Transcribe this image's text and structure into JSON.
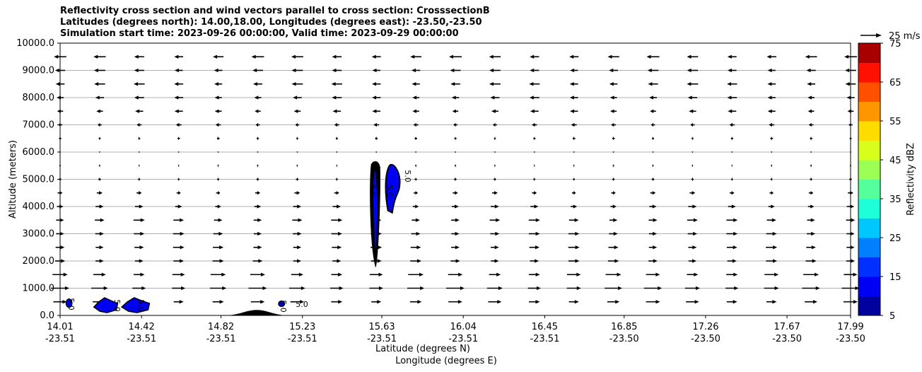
{
  "chart_data": {
    "type": "contour",
    "title_lines": [
      "Reflectivity cross section and wind vectors parallel to cross section: CrosssectionB",
      "Latitudes (degrees north): 14.00,18.00, Longitudes (degrees east): -23.50,-23.50",
      "Simulation start time: 2023-09-26 00:00:00, Valid time: 2023-09-29 00:00:00"
    ],
    "ylabel": "Altitude (meters)",
    "xlabel_lat": "Latitude (degrees N)",
    "xlabel_lon": "Longitude (degrees E)",
    "ylim": [
      0,
      10000
    ],
    "xlim": [
      14.01,
      17.99
    ],
    "y_ticks": [
      "0.0",
      "1000.0",
      "2000.0",
      "3000.0",
      "4000.0",
      "5000.0",
      "6000.0",
      "7000.0",
      "8000.0",
      "9000.0",
      "10000.0"
    ],
    "y_tick_values": [
      0,
      1000,
      2000,
      3000,
      4000,
      5000,
      6000,
      7000,
      8000,
      9000,
      10000
    ],
    "gridlines_y": [
      1000,
      2000,
      3000,
      4000,
      5000,
      6000,
      7000,
      8000,
      9000
    ],
    "x_ticks": [
      {
        "lat": "14.01",
        "lon": "-23.51",
        "value": 14.01
      },
      {
        "lat": "14.42",
        "lon": "-23.51",
        "value": 14.42
      },
      {
        "lat": "14.82",
        "lon": "-23.51",
        "value": 14.82
      },
      {
        "lat": "15.23",
        "lon": "-23.51",
        "value": 15.23
      },
      {
        "lat": "15.63",
        "lon": "-23.51",
        "value": 15.63
      },
      {
        "lat": "16.04",
        "lon": "-23.51",
        "value": 16.04
      },
      {
        "lat": "16.45",
        "lon": "-23.51",
        "value": 16.45
      },
      {
        "lat": "16.85",
        "lon": "-23.50",
        "value": 16.85
      },
      {
        "lat": "17.26",
        "lon": "-23.50",
        "value": 17.26
      },
      {
        "lat": "17.67",
        "lon": "-23.50",
        "value": 17.67
      },
      {
        "lat": "17.99",
        "lon": "-23.50",
        "value": 17.99
      }
    ],
    "colorbar": {
      "label": "Reflectivity dBZ",
      "levels": [
        5,
        10,
        15,
        20,
        25,
        30,
        35,
        40,
        45,
        50,
        55,
        60,
        65,
        70,
        75
      ],
      "tick_labels": [
        "5",
        "15",
        "25",
        "35",
        "45",
        "55",
        "65",
        "75"
      ],
      "colors": [
        "#00009e",
        "#0000f5",
        "#0030ff",
        "#0080ff",
        "#00c8ff",
        "#1cffd8",
        "#55ff9c",
        "#9cff55",
        "#d8ff1c",
        "#ffdc00",
        "#ff9600",
        "#ff5000",
        "#ff1000",
        "#a80000"
      ]
    },
    "quiver_key": "25 m/s",
    "contour_labels": [
      "5.0"
    ],
    "terrain": {
      "peak_lat": 15.0,
      "peak_alt": 200
    },
    "reflectivity_cells": [
      {
        "lat_range": [
          14.04,
          14.07
        ],
        "alt_range": [
          300,
          600
        ],
        "dbz": 10
      },
      {
        "lat_range": [
          14.18,
          14.3
        ],
        "alt_range": [
          100,
          650
        ],
        "dbz": 10
      },
      {
        "lat_range": [
          14.32,
          14.46
        ],
        "alt_range": [
          100,
          650
        ],
        "dbz": 10
      },
      {
        "lat_range": [
          15.11,
          15.14
        ],
        "alt_range": [
          330,
          530
        ],
        "dbz": 10
      },
      {
        "lat_range": [
          15.57,
          15.62
        ],
        "alt_range": [
          1800,
          5700
        ],
        "dbz": 10
      },
      {
        "lat_range": [
          15.65,
          15.71
        ],
        "alt_range": [
          3800,
          5600
        ],
        "dbz": 10
      }
    ],
    "wind_profile": [
      {
        "alt": 500,
        "u": 10
      },
      {
        "alt": 1000,
        "u": 13
      },
      {
        "alt": 1500,
        "u": 11
      },
      {
        "alt": 2000,
        "u": 8
      },
      {
        "alt": 2500,
        "u": 8
      },
      {
        "alt": 3000,
        "u": 8
      },
      {
        "alt": 3500,
        "u": 8
      },
      {
        "alt": 4000,
        "u": 6
      },
      {
        "alt": 4500,
        "u": 4
      },
      {
        "alt": 5000,
        "u": 2
      },
      {
        "alt": 5500,
        "u": 1
      },
      {
        "alt": 6000,
        "u": 0
      },
      {
        "alt": 6500,
        "u": -2
      },
      {
        "alt": 7000,
        "u": -4
      },
      {
        "alt": 7500,
        "u": -6
      },
      {
        "alt": 8000,
        "u": -7
      },
      {
        "alt": 8500,
        "u": -8
      },
      {
        "alt": 9000,
        "u": -8
      },
      {
        "alt": 9500,
        "u": -9
      }
    ],
    "grid": true
  }
}
